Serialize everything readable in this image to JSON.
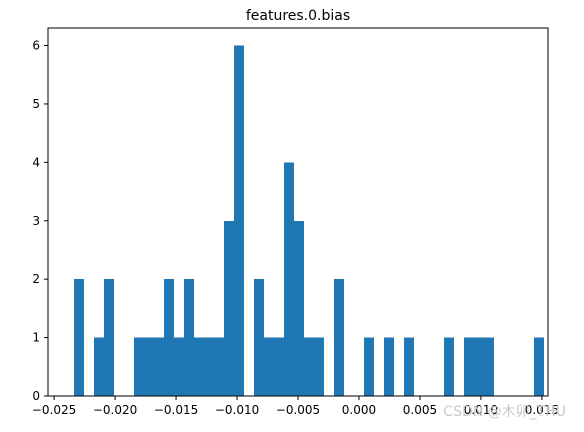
{
  "chart_data": {
    "type": "bar",
    "title": "features.0.bias",
    "xlabel": "",
    "ylabel": "",
    "bin_width": 0.000821,
    "xlim": [
      -0.0255,
      0.0155
    ],
    "ylim": [
      0,
      6.3
    ],
    "grid": false,
    "bars": [
      {
        "x0": -0.02335,
        "count": 2
      },
      {
        "x0": -0.02171,
        "count": 1
      },
      {
        "x0": -0.02089,
        "count": 2
      },
      {
        "x0": -0.01843,
        "count": 1
      },
      {
        "x0": -0.01761,
        "count": 1
      },
      {
        "x0": -0.01679,
        "count": 1
      },
      {
        "x0": -0.01597,
        "count": 2
      },
      {
        "x0": -0.01515,
        "count": 1
      },
      {
        "x0": -0.01433,
        "count": 2
      },
      {
        "x0": -0.01351,
        "count": 1
      },
      {
        "x0": -0.01269,
        "count": 1
      },
      {
        "x0": -0.01187,
        "count": 1
      },
      {
        "x0": -0.01105,
        "count": 3
      },
      {
        "x0": -0.01023,
        "count": 6
      },
      {
        "x0": -0.00859,
        "count": 2
      },
      {
        "x0": -0.00777,
        "count": 1
      },
      {
        "x0": -0.00695,
        "count": 1
      },
      {
        "x0": -0.00613,
        "count": 4
      },
      {
        "x0": -0.00531,
        "count": 3
      },
      {
        "x0": -0.00449,
        "count": 1
      },
      {
        "x0": -0.00367,
        "count": 1
      },
      {
        "x0": -0.00203,
        "count": 2
      },
      {
        "x0": 0.00043,
        "count": 1
      },
      {
        "x0": 0.00207,
        "count": 1
      },
      {
        "x0": 0.00371,
        "count": 1
      },
      {
        "x0": 0.00699,
        "count": 1
      },
      {
        "x0": 0.00863,
        "count": 1
      },
      {
        "x0": 0.00945,
        "count": 1
      },
      {
        "x0": 0.01027,
        "count": 1
      },
      {
        "x0": 0.01437,
        "count": 1
      }
    ],
    "xticks": [
      "−0.025",
      "−0.020",
      "−0.015",
      "−0.010",
      "−0.005",
      "0.000",
      "0.005",
      "0.010",
      "0.015"
    ],
    "xtick_values": [
      -0.025,
      -0.02,
      -0.015,
      -0.01,
      -0.005,
      0.0,
      0.005,
      0.01,
      0.015
    ],
    "yticks": [
      "0",
      "1",
      "2",
      "3",
      "4",
      "5",
      "6"
    ],
    "ytick_values": [
      0,
      1,
      2,
      3,
      4,
      5,
      6
    ],
    "bar_color": "#1f77b4"
  },
  "watermark": "CSDN @木卯_THU"
}
